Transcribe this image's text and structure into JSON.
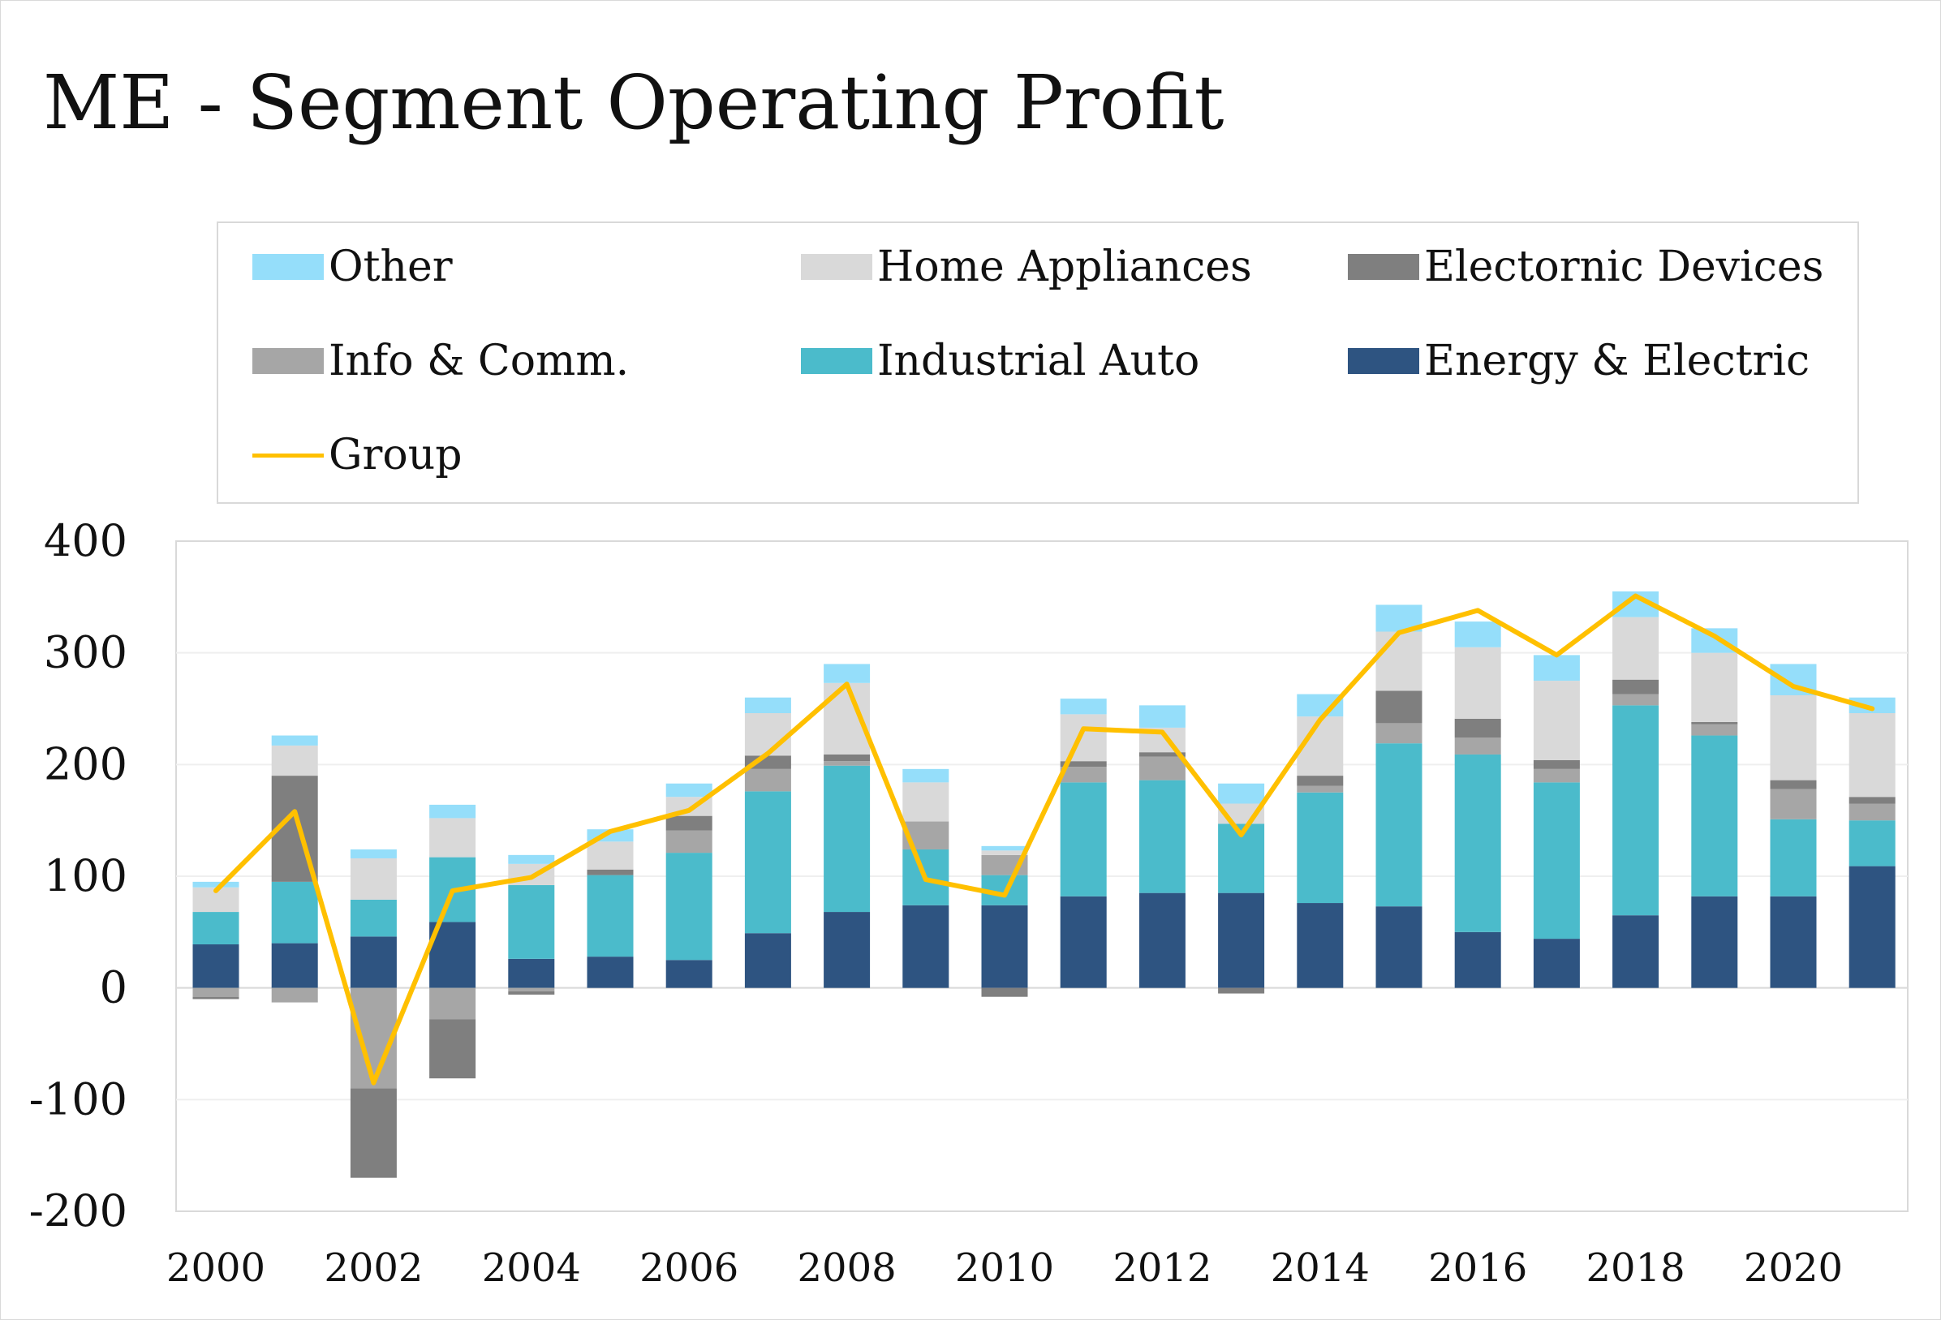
{
  "chart_data": {
    "type": "bar",
    "stacked": true,
    "title": "ME - Segment Operating Profit",
    "xlabel": "",
    "ylabel": "",
    "ylim": [
      -200,
      400
    ],
    "y_ticks": [
      400,
      300,
      200,
      100,
      0,
      -100,
      -200
    ],
    "y_tick_labels": [
      "400",
      "300",
      "200",
      "100",
      "0",
      "-100",
      "-200"
    ],
    "x_tick_labels": [
      "2000",
      "2002",
      "2004",
      "2006",
      "2008",
      "2010",
      "2012",
      "2014",
      "2016",
      "2018",
      "2020"
    ],
    "categories": [
      2000,
      2001,
      2002,
      2003,
      2004,
      2005,
      2006,
      2007,
      2008,
      2009,
      2010,
      2011,
      2012,
      2013,
      2014,
      2015,
      2016,
      2017,
      2018,
      2019,
      2020,
      2021
    ],
    "grid": true,
    "legend_position": "top",
    "series": [
      {
        "name": "Energy & Electric",
        "color": "#2e5481",
        "values": [
          39,
          40,
          46,
          59,
          26,
          28,
          25,
          49,
          68,
          74,
          74,
          82,
          85,
          85,
          76,
          73,
          50,
          44,
          65,
          82,
          82,
          109
        ]
      },
      {
        "name": "Industrial Auto",
        "color": "#4bbbcb",
        "values": [
          29,
          55,
          33,
          58,
          66,
          73,
          96,
          127,
          131,
          50,
          27,
          102,
          101,
          62,
          99,
          146,
          159,
          140,
          188,
          144,
          69,
          41
        ]
      },
      {
        "name": "Info & Comm.",
        "color": "#a6a6a6",
        "values": [
          -8,
          -13,
          -90,
          -28,
          -3,
          0,
          20,
          20,
          4,
          25,
          18,
          14,
          21,
          0,
          6,
          18,
          15,
          12,
          10,
          10,
          27,
          15
        ]
      },
      {
        "name": "Electornic Devices",
        "color": "#7f7f7f",
        "values": [
          -2,
          95,
          -80,
          -53,
          -3,
          5,
          13,
          12,
          6,
          0,
          -8,
          5,
          4,
          -5,
          9,
          29,
          17,
          8,
          13,
          2,
          8,
          6
        ]
      },
      {
        "name": "Home Appliances",
        "color": "#d9d9d9",
        "values": [
          22,
          27,
          37,
          35,
          19,
          25,
          17,
          38,
          64,
          35,
          4,
          42,
          22,
          18,
          53,
          53,
          64,
          71,
          56,
          62,
          76,
          75
        ]
      },
      {
        "name": "Other",
        "color": "#95defa",
        "values": [
          5,
          9,
          8,
          12,
          8,
          11,
          12,
          14,
          17,
          12,
          4,
          14,
          20,
          18,
          20,
          24,
          23,
          23,
          23,
          22,
          28,
          14
        ]
      }
    ],
    "line": {
      "name": "Group",
      "color": "#ffc000",
      "values": [
        87,
        158,
        -85,
        87,
        99,
        140,
        159,
        210,
        272,
        97,
        83,
        232,
        229,
        137,
        240,
        318,
        338,
        298,
        351,
        315,
        270,
        250
      ]
    }
  },
  "legend": [
    {
      "label": "Other",
      "color": "#95defa",
      "kind": "box"
    },
    {
      "label": "Home Appliances",
      "color": "#d9d9d9",
      "kind": "box"
    },
    {
      "label": "Electornic Devices",
      "color": "#7f7f7f",
      "kind": "box"
    },
    {
      "label": "Info & Comm.",
      "color": "#a6a6a6",
      "kind": "box"
    },
    {
      "label": "Industrial Auto",
      "color": "#4bbbcb",
      "kind": "box"
    },
    {
      "label": "Energy & Electric",
      "color": "#2e5481",
      "kind": "box"
    },
    {
      "label": "Group",
      "color": "#ffc000",
      "kind": "line"
    }
  ]
}
